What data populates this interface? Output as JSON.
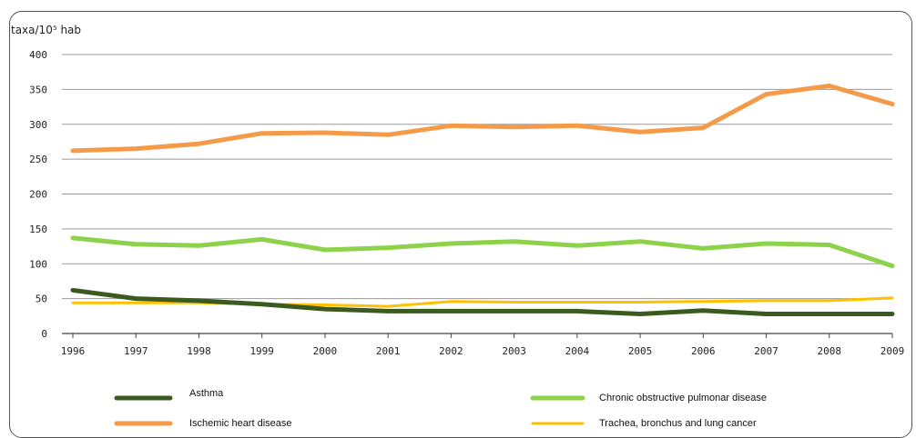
{
  "chart_data": {
    "type": "line",
    "title": "",
    "ylabel": "taxa/10⁵ hab",
    "xlabel": "",
    "ylim": [
      0,
      400
    ],
    "yticks": [
      0,
      50,
      100,
      150,
      200,
      250,
      300,
      350,
      400
    ],
    "grid": true,
    "legend_position": "bottom",
    "categories": [
      "1996",
      "1997",
      "1998",
      "1999",
      "2000",
      "2001",
      "2002",
      "2003",
      "2004",
      "2005",
      "2006",
      "2007",
      "2008",
      "2009"
    ],
    "series": [
      {
        "name": "Asthma",
        "color": "#3a5a20",
        "values": [
          62,
          50,
          47,
          42,
          35,
          32,
          32,
          32,
          32,
          28,
          33,
          28,
          28,
          28
        ]
      },
      {
        "name": "Chronic obstructive pulmonar disease",
        "color": "#8ed14b",
        "values": [
          137,
          128,
          126,
          135,
          120,
          123,
          129,
          132,
          126,
          132,
          122,
          129,
          127,
          97
        ]
      },
      {
        "name": "Ischemic heart disease",
        "color": "#f59a48",
        "values": [
          262,
          265,
          272,
          287,
          288,
          285,
          298,
          296,
          298,
          289,
          295,
          343,
          355,
          329
        ]
      },
      {
        "name": "Trachea, bronchus and lung cancer",
        "color": "#ffc000",
        "values": [
          44,
          44,
          44,
          42,
          41,
          39,
          46,
          45,
          45,
          45,
          46,
          47,
          47,
          51
        ]
      }
    ]
  }
}
